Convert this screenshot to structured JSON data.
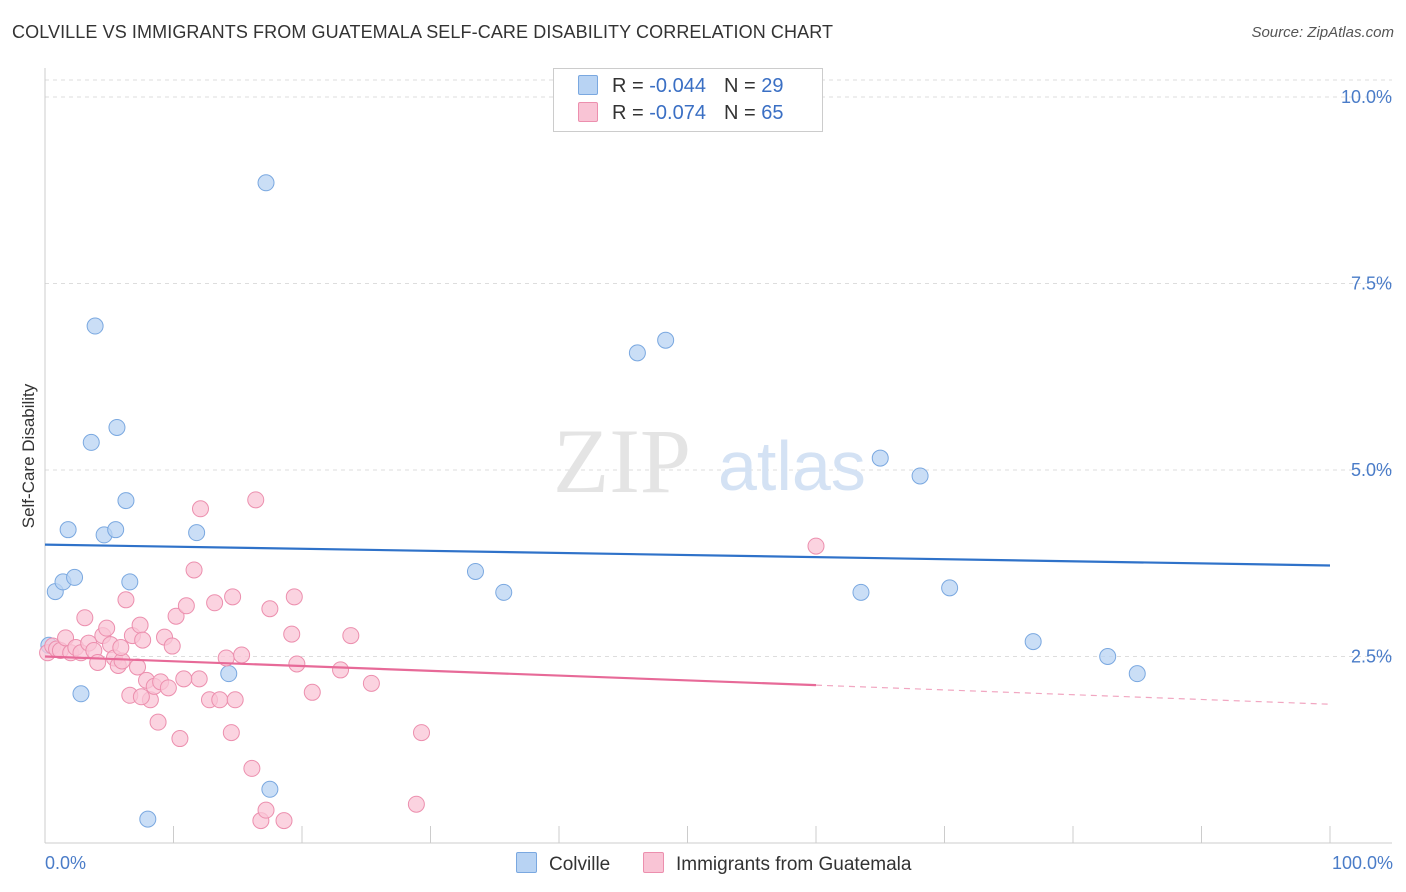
{
  "header": {
    "title": "COLVILLE VS IMMIGRANTS FROM GUATEMALA SELF-CARE DISABILITY CORRELATION CHART",
    "source": "Source: ZipAtlas.com"
  },
  "watermark": {
    "zip": "ZIP",
    "atlas": "atlas"
  },
  "legend_top": {
    "rows": [
      {
        "r_label": "R = ",
        "r_value": "-0.044",
        "n_label": "N = ",
        "n_value": "29"
      },
      {
        "r_label": "R = ",
        "r_value": "-0.074",
        "n_label": "N = ",
        "n_value": "65"
      }
    ]
  },
  "legend_bottom": {
    "series1": "Colville",
    "series2": "Immigrants from Guatemala"
  },
  "colors": {
    "colville_fill": "#b8d3f3",
    "colville_stroke": "#7aa8e0",
    "colville_line": "#2f72c9",
    "guatemala_fill": "#f9c4d5",
    "guatemala_stroke": "#ec8fae",
    "guatemala_line": "#e76a98",
    "tick_text": "#4a7cc8",
    "grid": "#dddddd"
  },
  "chart_data": {
    "type": "scatter",
    "title": "COLVILLE VS IMMIGRANTS FROM GUATEMALA SELF-CARE DISABILITY CORRELATION CHART",
    "xlabel": "",
    "ylabel": "Self-Care Disability",
    "xlim": [
      0,
      100
    ],
    "ylim": [
      0,
      10.5
    ],
    "x_tick_labels": [
      "0.0%",
      "100.0%"
    ],
    "y_ticks": [
      2.5,
      5.0,
      7.5,
      10.0
    ],
    "y_tick_labels": [
      "2.5%",
      "5.0%",
      "7.5%",
      "10.0%"
    ],
    "grid": true,
    "legend_position": "top-center",
    "series": [
      {
        "name": "Colville",
        "r": -0.044,
        "n": 29,
        "trend": {
          "x": [
            0,
            100
          ],
          "y": [
            4.0,
            3.72
          ],
          "dashed_from": null
        },
        "points": [
          [
            0.3,
            2.65
          ],
          [
            0.8,
            3.37
          ],
          [
            1.4,
            3.5
          ],
          [
            1.8,
            4.2
          ],
          [
            2.3,
            3.56
          ],
          [
            2.8,
            2.0
          ],
          [
            3.6,
            5.37
          ],
          [
            3.9,
            6.93
          ],
          [
            4.6,
            4.13
          ],
          [
            5.5,
            4.2
          ],
          [
            5.6,
            5.57
          ],
          [
            6.3,
            4.59
          ],
          [
            6.6,
            3.5
          ],
          [
            8.0,
            0.32
          ],
          [
            11.8,
            4.16
          ],
          [
            14.3,
            2.27
          ],
          [
            17.2,
            8.85
          ],
          [
            17.5,
            0.72
          ],
          [
            33.5,
            3.64
          ],
          [
            35.7,
            3.36
          ],
          [
            46.1,
            6.57
          ],
          [
            48.3,
            6.74
          ],
          [
            63.5,
            3.36
          ],
          [
            65.0,
            5.16
          ],
          [
            68.1,
            4.92
          ],
          [
            70.4,
            3.42
          ],
          [
            76.9,
            2.7
          ],
          [
            82.7,
            2.5
          ],
          [
            85.0,
            2.27
          ]
        ]
      },
      {
        "name": "Immigrants from Guatemala",
        "r": -0.074,
        "n": 65,
        "trend": {
          "x": [
            0,
            100
          ],
          "y": [
            2.5,
            1.86
          ],
          "dashed_from": 60
        },
        "points": [
          [
            0.2,
            2.55
          ],
          [
            0.6,
            2.64
          ],
          [
            0.9,
            2.6
          ],
          [
            1.2,
            2.58
          ],
          [
            1.6,
            2.75
          ],
          [
            2.0,
            2.55
          ],
          [
            2.4,
            2.62
          ],
          [
            2.8,
            2.55
          ],
          [
            3.1,
            3.02
          ],
          [
            3.4,
            2.68
          ],
          [
            3.8,
            2.58
          ],
          [
            4.1,
            2.42
          ],
          [
            4.5,
            2.78
          ],
          [
            4.8,
            2.88
          ],
          [
            5.1,
            2.66
          ],
          [
            5.4,
            2.48
          ],
          [
            5.7,
            2.38
          ],
          [
            6.0,
            2.44
          ],
          [
            6.3,
            3.26
          ],
          [
            6.6,
            1.98
          ],
          [
            6.8,
            2.78
          ],
          [
            7.2,
            2.36
          ],
          [
            7.4,
            2.92
          ],
          [
            7.6,
            2.72
          ],
          [
            7.9,
            2.18
          ],
          [
            8.2,
            1.92
          ],
          [
            8.5,
            2.1
          ],
          [
            8.8,
            1.62
          ],
          [
            9.0,
            2.16
          ],
          [
            9.3,
            2.76
          ],
          [
            9.6,
            2.08
          ],
          [
            9.9,
            2.64
          ],
          [
            10.2,
            3.04
          ],
          [
            10.5,
            1.4
          ],
          [
            11.0,
            3.18
          ],
          [
            11.6,
            3.66
          ],
          [
            12.1,
            4.48
          ],
          [
            12.8,
            1.92
          ],
          [
            13.2,
            3.22
          ],
          [
            13.6,
            1.92
          ],
          [
            14.1,
            2.48
          ],
          [
            14.6,
            3.3
          ],
          [
            14.8,
            1.92
          ],
          [
            15.3,
            2.52
          ],
          [
            16.1,
            1.0
          ],
          [
            16.4,
            4.6
          ],
          [
            16.8,
            0.3
          ],
          [
            17.2,
            0.44
          ],
          [
            17.5,
            3.14
          ],
          [
            18.6,
            0.3
          ],
          [
            19.2,
            2.8
          ],
          [
            19.6,
            2.4
          ],
          [
            20.8,
            2.02
          ],
          [
            23.0,
            2.32
          ],
          [
            23.8,
            2.78
          ],
          [
            25.4,
            2.14
          ],
          [
            28.9,
            0.52
          ],
          [
            29.3,
            1.48
          ],
          [
            60.0,
            3.98
          ],
          [
            19.4,
            3.3
          ],
          [
            14.5,
            1.48
          ],
          [
            7.5,
            1.96
          ],
          [
            12.0,
            2.2
          ],
          [
            10.8,
            2.2
          ],
          [
            5.9,
            2.62
          ]
        ]
      }
    ]
  }
}
